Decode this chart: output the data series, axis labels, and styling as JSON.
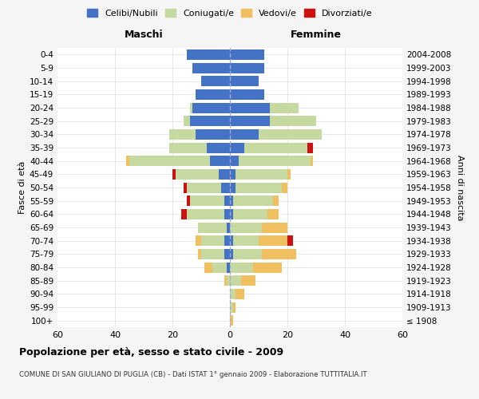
{
  "age_groups": [
    "100+",
    "95-99",
    "90-94",
    "85-89",
    "80-84",
    "75-79",
    "70-74",
    "65-69",
    "60-64",
    "55-59",
    "50-54",
    "45-49",
    "40-44",
    "35-39",
    "30-34",
    "25-29",
    "20-24",
    "15-19",
    "10-14",
    "5-9",
    "0-4"
  ],
  "birth_years": [
    "≤ 1908",
    "1909-1913",
    "1914-1918",
    "1919-1923",
    "1924-1928",
    "1929-1933",
    "1934-1938",
    "1939-1943",
    "1944-1948",
    "1949-1953",
    "1954-1958",
    "1959-1963",
    "1964-1968",
    "1969-1973",
    "1974-1978",
    "1979-1983",
    "1984-1988",
    "1989-1993",
    "1994-1998",
    "1999-2003",
    "2004-2008"
  ],
  "colors": {
    "celibe": "#4472C4",
    "coniugato": "#c5d9a0",
    "vedovo": "#f0c060",
    "divorziato": "#cc1111"
  },
  "males": {
    "celibe": [
      0,
      0,
      0,
      0,
      1,
      2,
      2,
      1,
      2,
      2,
      3,
      4,
      7,
      8,
      12,
      14,
      13,
      12,
      10,
      13,
      15
    ],
    "coniugato": [
      0,
      0,
      0,
      1,
      5,
      8,
      8,
      10,
      13,
      12,
      12,
      15,
      28,
      13,
      9,
      2,
      1,
      0,
      0,
      0,
      0
    ],
    "vedovo": [
      0,
      0,
      0,
      1,
      3,
      1,
      2,
      0,
      0,
      0,
      0,
      0,
      1,
      0,
      0,
      0,
      0,
      0,
      0,
      0,
      0
    ],
    "divorziato": [
      0,
      0,
      0,
      0,
      0,
      0,
      0,
      0,
      2,
      1,
      1,
      1,
      0,
      0,
      0,
      0,
      0,
      0,
      0,
      0,
      0
    ]
  },
  "females": {
    "nubile": [
      0,
      0,
      0,
      0,
      0,
      1,
      1,
      0,
      1,
      1,
      2,
      2,
      3,
      5,
      10,
      14,
      14,
      12,
      10,
      12,
      12
    ],
    "coniugata": [
      0,
      1,
      2,
      4,
      8,
      10,
      9,
      11,
      12,
      14,
      16,
      18,
      25,
      22,
      22,
      16,
      10,
      0,
      0,
      0,
      0
    ],
    "vedova": [
      1,
      1,
      3,
      5,
      10,
      12,
      10,
      9,
      4,
      2,
      2,
      1,
      1,
      0,
      0,
      0,
      0,
      0,
      0,
      0,
      0
    ],
    "divorziata": [
      0,
      0,
      0,
      0,
      0,
      0,
      2,
      0,
      0,
      0,
      0,
      0,
      0,
      2,
      0,
      0,
      0,
      0,
      0,
      0,
      0
    ]
  },
  "title": "Popolazione per età, sesso e stato civile - 2009",
  "subtitle": "COMUNE DI SAN GIULIANO DI PUGLIA (CB) - Dati ISTAT 1° gennaio 2009 - Elaborazione TUTTITALIA.IT",
  "xlabel_left": "Maschi",
  "xlabel_right": "Femmine",
  "ylabel_left": "Fasce di età",
  "ylabel_right": "Anni di nascita",
  "xlim": 60,
  "legend_labels": [
    "Celibi/Nubili",
    "Coniugati/e",
    "Vedovi/e",
    "Divorziati/e"
  ],
  "bg_color": "#f5f5f5",
  "plot_bg_color": "#ffffff"
}
